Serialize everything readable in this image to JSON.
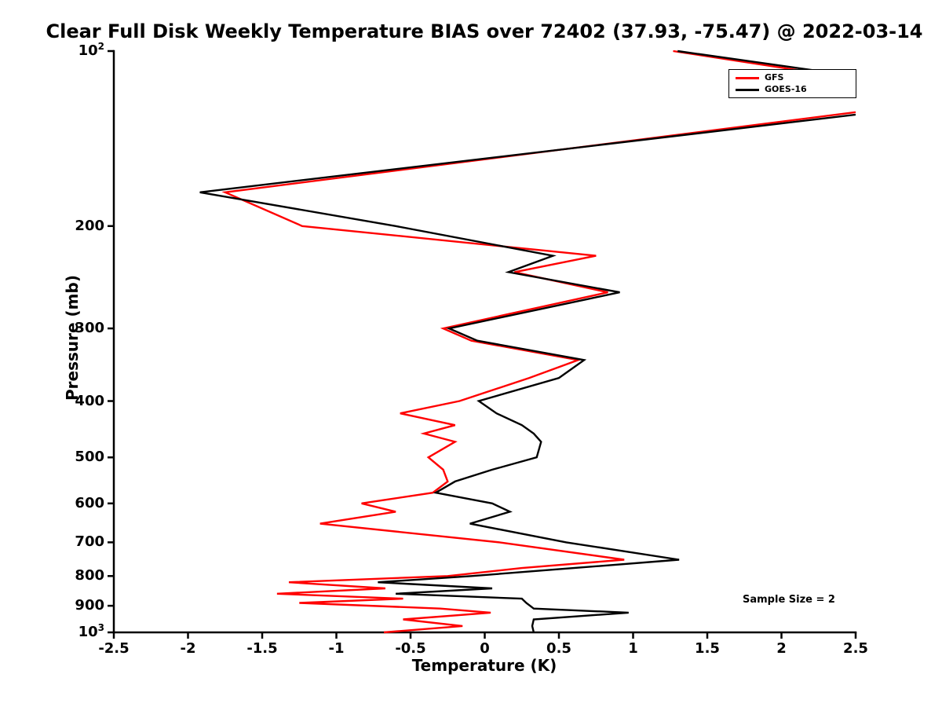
{
  "chart_data": {
    "type": "line",
    "title": "Clear Full Disk Weekly Temperature BIAS over 72402 (37.93, -75.47) @ 2022-03-14",
    "station_id": "72402",
    "latitude": 37.93,
    "longitude": -75.47,
    "date": "2022-03-14",
    "xlabel": "Temperature (K)",
    "ylabel": "Pressure (mb)",
    "xlim": [
      -2.5,
      2.5
    ],
    "ylim": [
      100,
      1000
    ],
    "y_scale": "log",
    "y_inverted": true,
    "grid": false,
    "x_ticks": [
      -2.5,
      -2,
      -1.5,
      -1,
      -0.5,
      0,
      0.5,
      1,
      1.5,
      2,
      2.5
    ],
    "x_tick_labels": [
      "-2.5",
      "-2",
      "-1.5",
      "-1",
      "-0.5",
      "0",
      "0.5",
      "1",
      "1.5",
      "2",
      "2.5"
    ],
    "y_ticks": [
      100,
      200,
      300,
      400,
      500,
      600,
      700,
      800,
      900,
      1000
    ],
    "y_tick_labels": [
      "10^2",
      "200",
      "300",
      "400",
      "500",
      "600",
      "700",
      "800",
      "900",
      "10^3"
    ],
    "legend_position": "top-right",
    "annotation": "Sample Size = 2",
    "sample_size": 2,
    "pressure_levels_mb": [
      100,
      120,
      175,
      200,
      225,
      240,
      260,
      300,
      315,
      340,
      365,
      400,
      420,
      440,
      455,
      470,
      500,
      525,
      550,
      575,
      600,
      620,
      650,
      700,
      750,
      775,
      800,
      820,
      840,
      858,
      875,
      890,
      910,
      925,
      950,
      975,
      1000
    ],
    "series": [
      {
        "name": "GFS",
        "color": "#ff0000",
        "values": [
          1.27,
          3.3,
          -1.75,
          -1.23,
          0.75,
          0.2,
          0.83,
          -0.28,
          -0.09,
          0.63,
          0.3,
          -0.17,
          -0.57,
          -0.2,
          -0.41,
          -0.2,
          -0.38,
          -0.28,
          -0.25,
          -0.35,
          -0.83,
          -0.6,
          -1.11,
          0.1,
          0.94,
          0.25,
          -0.25,
          -1.32,
          -0.67,
          -1.4,
          -0.55,
          -1.25,
          -0.3,
          0.04,
          -0.55,
          -0.15,
          -0.68
        ]
      },
      {
        "name": "GOES-16",
        "color": "#000000",
        "values": [
          1.3,
          3.5,
          -1.92,
          -0.6,
          0.46,
          0.16,
          0.91,
          -0.24,
          -0.05,
          0.67,
          0.5,
          -0.04,
          0.08,
          0.25,
          0.33,
          0.38,
          0.35,
          0.05,
          -0.2,
          -0.33,
          0.05,
          0.17,
          -0.1,
          0.55,
          1.31,
          0.6,
          -0.09,
          -0.72,
          0.05,
          -0.6,
          0.25,
          0.28,
          0.33,
          0.97,
          0.33,
          0.32,
          0.33
        ]
      }
    ]
  }
}
